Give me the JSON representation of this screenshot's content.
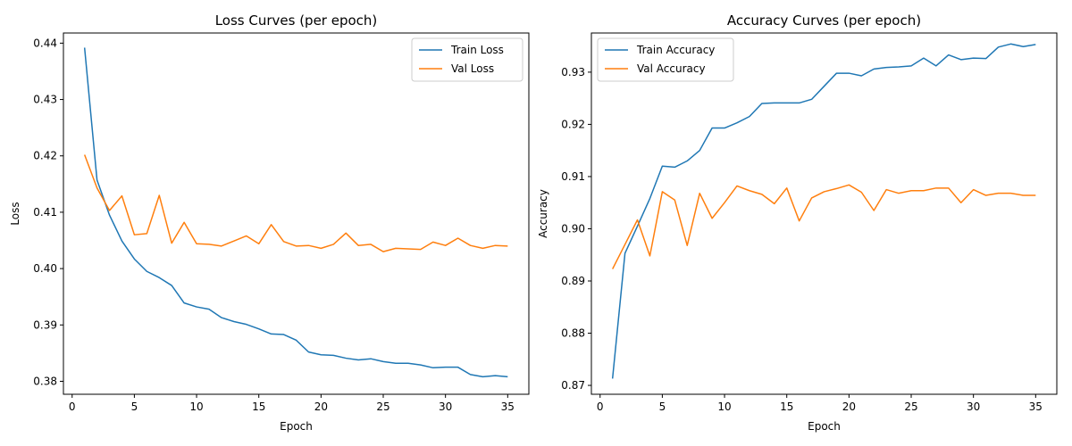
{
  "chart_data": [
    {
      "type": "line",
      "title": "Loss Curves (per epoch)",
      "xlabel": "Epoch",
      "ylabel": "Loss",
      "xlim": [
        -0.7,
        36.7
      ],
      "ylim": [
        0.3777,
        0.4418
      ],
      "xticks": [
        0,
        5,
        10,
        15,
        20,
        25,
        30,
        35
      ],
      "yticks": [
        0.38,
        0.39,
        0.4,
        0.41,
        0.42,
        0.43,
        0.44
      ],
      "ytick_labels": [
        "0.38",
        "0.39",
        "0.40",
        "0.41",
        "0.42",
        "0.43",
        "0.44"
      ],
      "legend": "top-right",
      "grid": false,
      "x": [
        1,
        2,
        3,
        4,
        5,
        6,
        7,
        8,
        9,
        10,
        11,
        12,
        13,
        14,
        15,
        16,
        17,
        18,
        19,
        20,
        21,
        22,
        23,
        24,
        25,
        26,
        27,
        28,
        29,
        30,
        31,
        32,
        33,
        34,
        35
      ],
      "series": [
        {
          "name": "Train Loss",
          "color": "#1f77b4",
          "values": [
            0.4392,
            0.4157,
            0.4095,
            0.4049,
            0.4017,
            0.3995,
            0.3984,
            0.397,
            0.3939,
            0.3932,
            0.3928,
            0.3913,
            0.3906,
            0.3901,
            0.3893,
            0.3884,
            0.3883,
            0.3873,
            0.3852,
            0.3847,
            0.3846,
            0.3841,
            0.3838,
            0.384,
            0.3835,
            0.3832,
            0.3832,
            0.3829,
            0.3824,
            0.3825,
            0.3825,
            0.3812,
            0.3808,
            0.381,
            0.3808
          ]
        },
        {
          "name": "Val Loss",
          "color": "#ff7f0e",
          "values": [
            0.4202,
            0.4143,
            0.4103,
            0.4129,
            0.406,
            0.4062,
            0.413,
            0.4045,
            0.4082,
            0.4044,
            0.4043,
            0.404,
            0.4049,
            0.4058,
            0.4044,
            0.4078,
            0.4048,
            0.404,
            0.4041,
            0.4036,
            0.4043,
            0.4063,
            0.4041,
            0.4043,
            0.403,
            0.4036,
            0.4035,
            0.4034,
            0.4047,
            0.4041,
            0.4054,
            0.4041,
            0.4036,
            0.4041,
            0.404
          ]
        }
      ]
    },
    {
      "type": "line",
      "title": "Accuracy Curves (per epoch)",
      "xlabel": "Epoch",
      "ylabel": "Accuracy",
      "xlim": [
        -0.7,
        36.7
      ],
      "ylim": [
        0.8683,
        0.9375
      ],
      "xticks": [
        0,
        5,
        10,
        15,
        20,
        25,
        30,
        35
      ],
      "yticks": [
        0.87,
        0.88,
        0.89,
        0.9,
        0.91,
        0.92,
        0.93
      ],
      "ytick_labels": [
        "0.87",
        "0.88",
        "0.89",
        "0.90",
        "0.91",
        "0.92",
        "0.93"
      ],
      "legend": "top-left",
      "grid": false,
      "x": [
        1,
        2,
        3,
        4,
        5,
        6,
        7,
        8,
        9,
        10,
        11,
        12,
        13,
        14,
        15,
        16,
        17,
        18,
        19,
        20,
        21,
        22,
        23,
        24,
        25,
        26,
        27,
        28,
        29,
        30,
        31,
        32,
        33,
        34,
        35
      ],
      "series": [
        {
          "name": "Train Accuracy",
          "color": "#1f77b4",
          "values": [
            0.8713,
            0.8953,
            0.9005,
            0.9058,
            0.912,
            0.9118,
            0.913,
            0.915,
            0.9193,
            0.9193,
            0.9203,
            0.9215,
            0.924,
            0.9241,
            0.9241,
            0.9241,
            0.9248,
            0.9273,
            0.9298,
            0.9298,
            0.9293,
            0.9306,
            0.9309,
            0.931,
            0.9312,
            0.9327,
            0.9312,
            0.9333,
            0.9324,
            0.9327,
            0.9326,
            0.9348,
            0.9354,
            0.9349,
            0.9353
          ]
        },
        {
          "name": "Val Accuracy",
          "color": "#ff7f0e",
          "values": [
            0.8923,
            0.897,
            0.9017,
            0.8948,
            0.9071,
            0.9055,
            0.8968,
            0.9068,
            0.902,
            0.905,
            0.9082,
            0.9073,
            0.9066,
            0.9048,
            0.9078,
            0.9015,
            0.9059,
            0.9071,
            0.9077,
            0.9084,
            0.907,
            0.9035,
            0.9075,
            0.9068,
            0.9073,
            0.9073,
            0.9078,
            0.9078,
            0.905,
            0.9075,
            0.9064,
            0.9068,
            0.9068,
            0.9064,
            0.9064
          ]
        }
      ]
    }
  ]
}
